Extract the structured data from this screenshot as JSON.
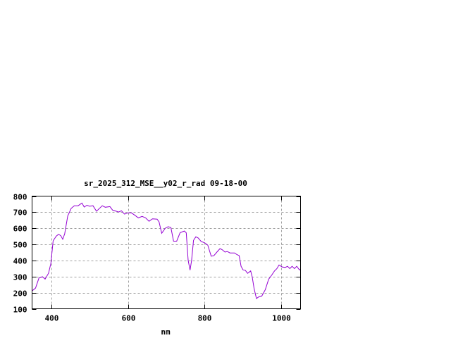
{
  "chart_data": {
    "type": "line",
    "title": "sr_2025_312_MSE__y02_r_rad 09-18-00",
    "xlabel": "nm",
    "ylabel": "",
    "xlim": [
      350,
      1050
    ],
    "ylim": [
      100,
      800
    ],
    "xticks": [
      400,
      600,
      800,
      1000
    ],
    "yticks": [
      100,
      200,
      300,
      400,
      500,
      600,
      700,
      800
    ],
    "grid": true,
    "line_color": "#9400d3",
    "x": [
      351,
      359,
      368,
      377,
      384,
      393,
      399,
      405,
      413,
      419,
      425,
      430,
      435,
      443,
      452,
      460,
      470,
      480,
      486,
      493,
      500,
      509,
      518,
      533,
      541,
      553,
      560,
      576,
      583,
      591,
      600,
      609,
      618,
      627,
      637,
      646,
      655,
      664,
      676,
      681,
      688,
      697,
      705,
      712,
      719,
      727,
      736,
      747,
      752,
      757,
      762,
      766,
      771,
      777,
      783,
      791,
      800,
      808,
      817,
      824,
      832,
      840,
      846,
      853,
      859,
      866,
      878,
      884,
      890,
      895,
      900,
      906,
      912,
      920,
      924,
      929,
      935,
      941,
      949,
      958,
      967,
      975,
      982,
      988,
      994,
      1002,
      1010,
      1016,
      1022,
      1028,
      1034,
      1040,
      1047,
      1050
    ],
    "y": [
      213,
      228,
      291,
      299,
      284,
      321,
      382,
      522,
      551,
      563,
      554,
      532,
      566,
      676,
      724,
      740,
      740,
      757,
      732,
      743,
      737,
      740,
      706,
      740,
      731,
      735,
      713,
      701,
      709,
      688,
      696,
      696,
      681,
      665,
      674,
      665,
      644,
      659,
      657,
      640,
      569,
      600,
      610,
      605,
      520,
      520,
      573,
      583,
      572,
      401,
      340,
      401,
      525,
      547,
      540,
      518,
      510,
      496,
      427,
      430,
      452,
      474,
      466,
      452,
      456,
      447,
      447,
      437,
      430,
      364,
      342,
      339,
      320,
      335,
      298,
      225,
      164,
      174,
      179,
      218,
      284,
      310,
      335,
      349,
      372,
      360,
      357,
      364,
      350,
      364,
      350,
      364,
      342,
      345
    ]
  }
}
